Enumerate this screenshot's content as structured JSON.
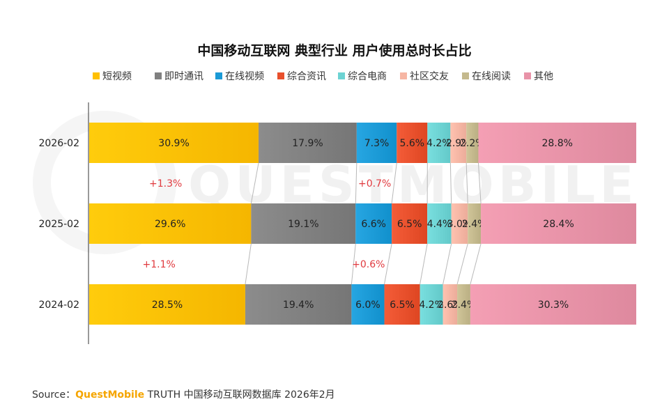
{
  "chart_data": {
    "type": "bar",
    "orientation": "horizontal",
    "stacked": true,
    "normalized": true,
    "title": "中国移动互联网 典型行业 用户使用总时长占比",
    "legend_position": "top",
    "grid": false,
    "categories": [
      "2026-02",
      "2025-02",
      "2024-02"
    ],
    "series": [
      {
        "name": "短视频",
        "color": "#ffc000",
        "values": [
          30.9,
          29.6,
          28.5
        ]
      },
      {
        "name": "即时通讯",
        "color": "#808080",
        "values": [
          17.9,
          19.1,
          19.4
        ]
      },
      {
        "name": "在线视频",
        "color": "#1b9ad6",
        "values": [
          7.3,
          6.6,
          6.0
        ]
      },
      {
        "name": "综合资讯",
        "color": "#e8502c",
        "values": [
          5.6,
          6.5,
          6.5
        ]
      },
      {
        "name": "综合电商",
        "color": "#6dd3d3",
        "values": [
          4.2,
          4.4,
          4.2
        ]
      },
      {
        "name": "社区交友",
        "color": "#f6b6a4",
        "values": [
          2.9,
          3.0,
          2.6
        ]
      },
      {
        "name": "在线阅读",
        "color": "#c4b98d",
        "values": [
          2.2,
          2.4,
          2.4
        ]
      },
      {
        "name": "其他",
        "color": "#e893a8",
        "values": [
          28.8,
          28.4,
          30.3
        ]
      }
    ],
    "value_labels": [
      [
        "30.9%",
        "17.9%",
        "7.3%",
        "5.6%",
        "4.2%",
        "2.9%",
        "2.2%",
        "28.8%"
      ],
      [
        "29.6%",
        "19.1%",
        "6.6%",
        "6.5%",
        "4.4%",
        "3.0%",
        "2.4%",
        "28.4%"
      ],
      [
        "28.5%",
        "19.4%",
        "6.0%",
        "6.5%",
        "4.2%",
        "2.6%",
        "2.4%",
        "30.3%"
      ]
    ],
    "annotations": [
      {
        "between": [
          "2026-02",
          "2025-02"
        ],
        "series": "短视频",
        "text": "+1.3%"
      },
      {
        "between": [
          "2026-02",
          "2025-02"
        ],
        "series": "在线视频",
        "text": "+0.7%"
      },
      {
        "between": [
          "2025-02",
          "2024-02"
        ],
        "series": "短视频",
        "text": "+1.1%"
      },
      {
        "between": [
          "2025-02",
          "2024-02"
        ],
        "series": "在线视频",
        "text": "+0.6%"
      }
    ],
    "delta_color": "#e0393e"
  },
  "watermark": "QUESTMOBILE",
  "source": {
    "prefix": "Source：",
    "brand": "QuestMobile",
    "suffix": " TRUTH 中国移动互联网数据库 2026年2月"
  }
}
